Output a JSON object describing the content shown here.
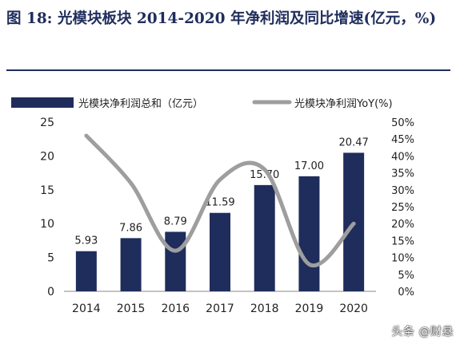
{
  "title": "图 18: 光模块板块 2014-2020 年净利润及同比增速(亿元，%)",
  "watermark": "头条 @财悬",
  "colors": {
    "bar": "#1f2d5c",
    "line": "#9e9e9e",
    "title": "#1f2d5c"
  },
  "chart_data": {
    "type": "bar",
    "categories": [
      "2014",
      "2015",
      "2016",
      "2017",
      "2018",
      "2019",
      "2020"
    ],
    "series": [
      {
        "name": "光模块净利润总和（亿元）",
        "type": "bar",
        "axis": "left",
        "values": [
          5.93,
          7.86,
          8.79,
          11.59,
          15.7,
          17.0,
          20.47
        ],
        "labels": [
          "5.93",
          "7.86",
          "8.79",
          "11.59",
          "15.70",
          "17.00",
          "20.47"
        ]
      },
      {
        "name": "光模块净利润YoY(%)",
        "type": "line",
        "axis": "right",
        "values": [
          46,
          32,
          12,
          33,
          36,
          8,
          20
        ]
      }
    ],
    "ylim": [
      0,
      25
    ],
    "yticks": [
      "0",
      "5",
      "10",
      "15",
      "20",
      "25"
    ],
    "y2lim": [
      0,
      50
    ],
    "y2ticks": [
      "0%",
      "5%",
      "10%",
      "15%",
      "20%",
      "25%",
      "30%",
      "35%",
      "40%",
      "45%",
      "50%"
    ],
    "legend": "top",
    "grid": false
  }
}
